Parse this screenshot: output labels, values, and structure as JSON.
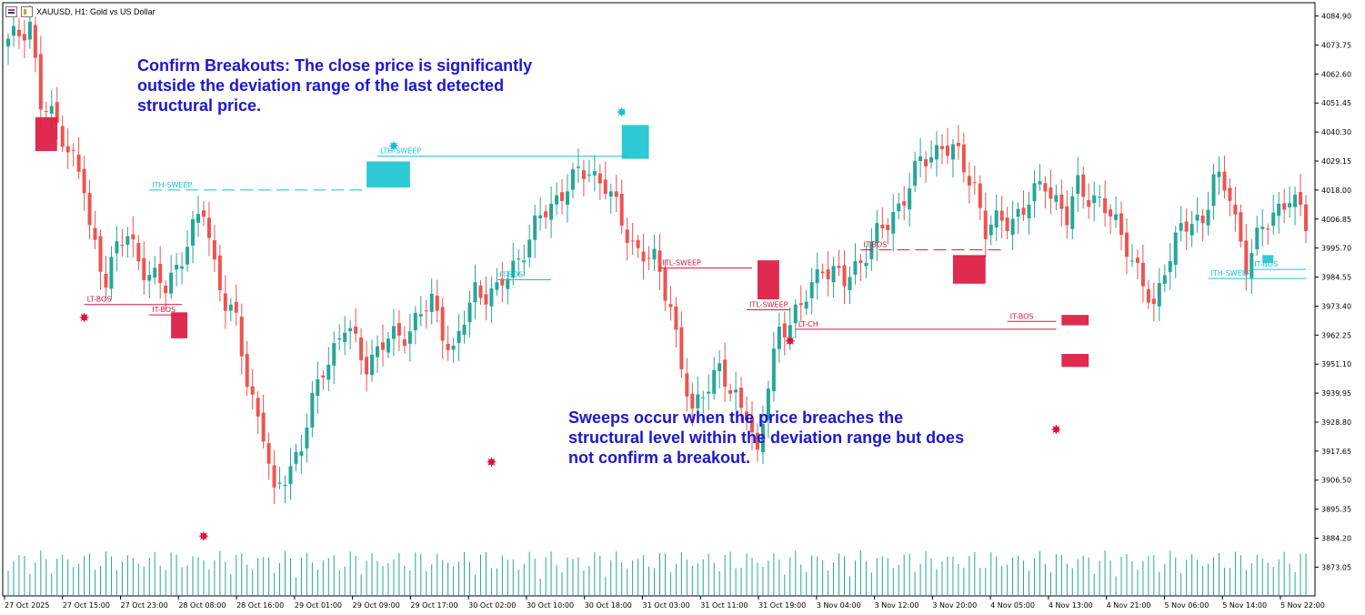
{
  "header": {
    "title": "XAUUSD, H1:  Gold vs US Dollar",
    "icons": [
      "chart-list-icon",
      "timeframe-icon"
    ]
  },
  "annotations": {
    "breakout_note": [
      "Confirm Breakouts: The close price is significantly",
      "outside the deviation range of the last detected",
      "structural price."
    ],
    "sweep_note": [
      "Sweeps occur when the price breaches the",
      "structural level within the deviation range but does",
      "not confirm a breakout."
    ]
  },
  "colors": {
    "bull": "#26a69a",
    "bear": "#ef5350",
    "sweep_high": "#17c3cf",
    "sweep_low": "#dc143c",
    "text_blue": "#1d16d6",
    "grid_axis": "#000000"
  },
  "chart_data": {
    "type": "candlestick",
    "symbol": "XAUUSD",
    "timeframe": "H1",
    "ylim": [
      3862.0,
      4090.0
    ],
    "y_ticks": [
      "4084.90",
      "4073.75",
      "4062.60",
      "4051.45",
      "4040.30",
      "4029.15",
      "4018.00",
      "4006.85",
      "3995.70",
      "3984.55",
      "3973.40",
      "3962.25",
      "3951.10",
      "3939.95",
      "3928.80",
      "3917.65",
      "3906.50",
      "3895.35",
      "3884.20",
      "3873.05"
    ],
    "x_ticks": [
      "27 Oct 2025",
      "27 Oct 15:00",
      "27 Oct 23:00",
      "28 Oct 08:00",
      "28 Oct 16:00",
      "29 Oct 01:00",
      "29 Oct 09:00",
      "29 Oct 17:00",
      "30 Oct 02:00",
      "30 Oct 10:00",
      "30 Oct 18:00",
      "31 Oct 03:00",
      "31 Oct 11:00",
      "31 Oct 19:00",
      "3 Nov 04:00",
      "3 Nov 12:00",
      "3 Nov 20:00",
      "4 Nov 05:00",
      "4 Nov 13:00",
      "4 Nov 21:00",
      "5 Nov 06:00",
      "5 Nov 14:00",
      "5 Nov 22:00"
    ],
    "candle_count": 240,
    "anchor_closes": [
      [
        0,
        4074
      ],
      [
        4,
        4083
      ],
      [
        6,
        4050
      ],
      [
        8,
        4046
      ],
      [
        10,
        4040
      ],
      [
        12,
        4030
      ],
      [
        14,
        4018
      ],
      [
        15,
        4002
      ],
      [
        18,
        3985
      ],
      [
        20,
        3995
      ],
      [
        22,
        4000
      ],
      [
        26,
        3985
      ],
      [
        29,
        3980
      ],
      [
        33,
        3998
      ],
      [
        36,
        4010
      ],
      [
        38,
        3990
      ],
      [
        40,
        3975
      ],
      [
        42,
        3966
      ],
      [
        44,
        3945
      ],
      [
        47,
        3925
      ],
      [
        49,
        3898
      ],
      [
        50,
        3905
      ],
      [
        54,
        3920
      ],
      [
        58,
        3950
      ],
      [
        62,
        3965
      ],
      [
        66,
        3952
      ],
      [
        70,
        3960
      ],
      [
        74,
        3965
      ],
      [
        78,
        3975
      ],
      [
        82,
        3955
      ],
      [
        86,
        3980
      ],
      [
        90,
        3978
      ],
      [
        95,
        3996
      ],
      [
        99,
        4010
      ],
      [
        103,
        4020
      ],
      [
        107,
        4026
      ],
      [
        110,
        4020
      ],
      [
        113,
        4005
      ],
      [
        116,
        3995
      ],
      [
        119,
        3990
      ],
      [
        122,
        3975
      ],
      [
        124,
        3950
      ],
      [
        126,
        3930
      ],
      [
        128,
        3942
      ],
      [
        131,
        3950
      ],
      [
        133,
        3938
      ],
      [
        136,
        3935
      ],
      [
        138,
        3915
      ],
      [
        140,
        3942
      ],
      [
        142,
        3965
      ],
      [
        146,
        3972
      ],
      [
        150,
        3990
      ],
      [
        154,
        3982
      ],
      [
        158,
        3995
      ],
      [
        162,
        4005
      ],
      [
        166,
        4020
      ],
      [
        168,
        4028
      ],
      [
        172,
        4036
      ],
      [
        175,
        4030
      ],
      [
        178,
        4020
      ],
      [
        180,
        4002
      ],
      [
        183,
        4006
      ],
      [
        187,
        4010
      ],
      [
        191,
        4022
      ],
      [
        195,
        4006
      ],
      [
        197,
        4020
      ],
      [
        200,
        4015
      ],
      [
        204,
        4005
      ],
      [
        206,
        3998
      ],
      [
        209,
        3980
      ],
      [
        211,
        3972
      ],
      [
        213,
        3990
      ],
      [
        216,
        4002
      ],
      [
        220,
        4008
      ],
      [
        222,
        4022
      ],
      [
        225,
        4016
      ],
      [
        228,
        3990
      ],
      [
        230,
        3998
      ],
      [
        233,
        4010
      ],
      [
        236,
        4015
      ],
      [
        239,
        4005
      ]
    ],
    "volume_range": [
      0,
      1
    ],
    "levels": [
      {
        "label": "ITH-SWEEP",
        "price": 4018.0,
        "type": "sweep_high",
        "style": "dashed"
      },
      {
        "label": "LTH-SWEEP",
        "price": 4031.0,
        "type": "sweep_high",
        "style": "solid"
      },
      {
        "label": "IT-BOS",
        "price": 3983.5,
        "type": "bos_high",
        "style": "solid"
      },
      {
        "label": "ITH-SWEEP",
        "price": 3984.0,
        "type": "sweep_high",
        "style": "solid"
      },
      {
        "label": "IT-BOS",
        "price": 3987.5,
        "type": "bos_high",
        "style": "solid"
      },
      {
        "label": "LT-BOS",
        "price": 3974.0,
        "type": "bos_low",
        "style": "solid"
      },
      {
        "label": "IT-BOS",
        "price": 3970.0,
        "type": "bos_low",
        "style": "solid"
      },
      {
        "label": "ITL-SWEEP",
        "price": 3988.0,
        "type": "sweep_low",
        "style": "solid"
      },
      {
        "label": "ITL-SWEEP",
        "price": 3972.0,
        "type": "sweep_low",
        "style": "solid"
      },
      {
        "label": "LT-CH",
        "price": 3964.5,
        "type": "choch_low",
        "style": "solid"
      },
      {
        "label": "IT-BOS",
        "price": 3995.0,
        "type": "bos_low",
        "style": "dashed"
      },
      {
        "label": "IT-BOS",
        "price": 3967.5,
        "type": "bos_low",
        "style": "solid"
      }
    ],
    "markers": [
      {
        "type": "sweep_high",
        "price": 4048.0
      },
      {
        "type": "sweep_high",
        "price": 4035.0
      },
      {
        "type": "sweep_low",
        "price": 3969.0
      },
      {
        "type": "sweep_low",
        "price": 3885.0
      },
      {
        "type": "sweep_low",
        "price": 3913.5
      },
      {
        "type": "sweep_low",
        "price": 3960.0
      },
      {
        "type": "sweep_low",
        "price": 3926.0
      }
    ]
  }
}
